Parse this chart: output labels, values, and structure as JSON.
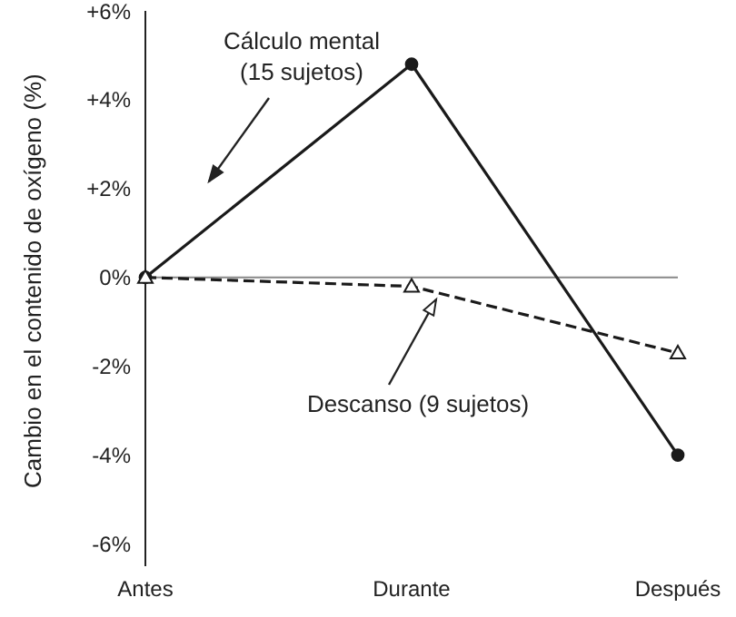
{
  "chart_data": {
    "type": "line",
    "ylabel": "Cambio en el contenido de oxígeno (%)",
    "categories": [
      "Antes",
      "Durante",
      "Después"
    ],
    "series": [
      {
        "name": "Cálculo mental (15 sujetos)",
        "color": "#1a1a1a",
        "values": [
          0,
          4.8,
          -4.0
        ],
        "marker": "circle",
        "line_style": "solid"
      },
      {
        "name": "Descanso (9 sujetos)",
        "color": "#1a1a1a",
        "values": [
          0,
          -0.2,
          -1.7
        ],
        "marker": "triangle",
        "line_style": "dashed"
      }
    ],
    "ylim": [
      -6.5,
      6
    ],
    "yticks": [
      {
        "value": 6,
        "label": "+6%"
      },
      {
        "value": 4,
        "label": "+4%"
      },
      {
        "value": 2,
        "label": "+2%"
      },
      {
        "value": 0,
        "label": "0%"
      },
      {
        "value": -2,
        "label": "-2%"
      },
      {
        "value": -4,
        "label": "-4%"
      },
      {
        "value": -6,
        "label": "-6%"
      }
    ],
    "ref_lines": [
      {
        "axis": "y",
        "value": 0,
        "color": "#888888"
      }
    ],
    "grid": false
  }
}
